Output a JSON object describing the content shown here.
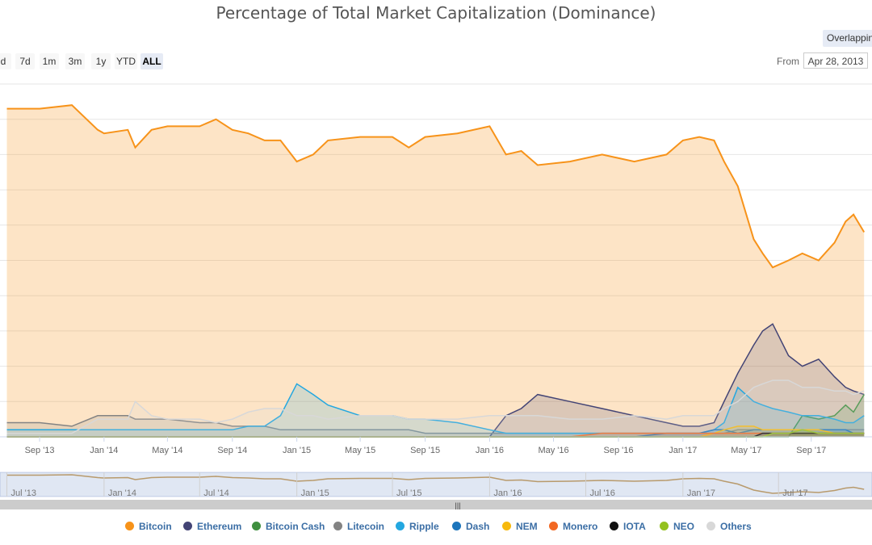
{
  "chart_title": "Percentage of Total Market Capitalization (Dominance)",
  "overlap_button": "Overlapping",
  "zoom_buttons": [
    {
      "label": "d",
      "active": false
    },
    {
      "label": "7d",
      "active": false
    },
    {
      "label": "1m",
      "active": false
    },
    {
      "label": "3m",
      "active": false
    },
    {
      "label": "1y",
      "active": false
    },
    {
      "label": "YTD",
      "active": false
    },
    {
      "label": "ALL",
      "active": true
    }
  ],
  "range": {
    "from_label": "From",
    "from_value": "Apr 28, 2013"
  },
  "navigator_ticks": [
    "Jul '13",
    "Jan '14",
    "Jul '14",
    "Jan '15",
    "Jul '15",
    "Jan '16",
    "Jul '16",
    "Jan '17",
    "Jul '17"
  ],
  "navigator_handle": "|||",
  "chart_data": {
    "type": "area",
    "title": "Percentage of Total Market Capitalization (Dominance)",
    "xlabel": "",
    "ylabel": "",
    "ylim": [
      0,
      100
    ],
    "grid": true,
    "legend_position": "bottom",
    "x_tick_labels": [
      "Sep '13",
      "Jan '14",
      "May '14",
      "Sep '14",
      "Jan '15",
      "May '15",
      "Sep '15",
      "Jan '16",
      "May '16",
      "Sep '16",
      "Jan '17",
      "May '17",
      "Sep '17"
    ],
    "x": [
      "2013-07-01",
      "2013-09-01",
      "2013-11-01",
      "2013-12-20",
      "2014-01-01",
      "2014-02-15",
      "2014-03-01",
      "2014-04-01",
      "2014-05-01",
      "2014-07-01",
      "2014-08-01",
      "2014-09-01",
      "2014-10-01",
      "2014-11-01",
      "2014-12-01",
      "2015-01-01",
      "2015-02-01",
      "2015-03-01",
      "2015-05-01",
      "2015-07-01",
      "2015-08-01",
      "2015-09-01",
      "2015-11-01",
      "2016-01-01",
      "2016-02-01",
      "2016-03-01",
      "2016-04-01",
      "2016-06-01",
      "2016-08-01",
      "2016-10-01",
      "2016-12-01",
      "2017-01-01",
      "2017-02-01",
      "2017-03-01",
      "2017-03-20",
      "2017-04-15",
      "2017-05-15",
      "2017-06-01",
      "2017-06-20",
      "2017-07-20",
      "2017-08-15",
      "2017-09-15",
      "2017-10-15",
      "2017-11-05",
      "2017-11-20",
      "2017-12-10"
    ],
    "series": [
      {
        "name": "Bitcoin",
        "color": "#f7931a",
        "values": [
          93,
          93,
          94,
          87,
          86,
          87,
          82,
          87,
          88,
          88,
          90,
          87,
          86,
          84,
          84,
          78,
          80,
          84,
          85,
          85,
          82,
          85,
          86,
          88,
          80,
          81,
          77,
          78,
          80,
          78,
          80,
          84,
          85,
          84,
          78,
          71,
          56,
          52,
          48,
          50,
          52,
          50,
          55,
          61,
          63,
          58
        ]
      },
      {
        "name": "Ethereum",
        "color": "#434475",
        "values": [
          0,
          0,
          0,
          0,
          0,
          0,
          0,
          0,
          0,
          0,
          0,
          0,
          0,
          0,
          0,
          0,
          0,
          0,
          0,
          0,
          0,
          0,
          0,
          0,
          6,
          8,
          12,
          10,
          8,
          6,
          4,
          3,
          3,
          4,
          10,
          18,
          26,
          30,
          32,
          23,
          20,
          22,
          17,
          14,
          13,
          12
        ]
      },
      {
        "name": "Bitcoin Cash",
        "color": "#3f8f3f",
        "values": [
          0,
          0,
          0,
          0,
          0,
          0,
          0,
          0,
          0,
          0,
          0,
          0,
          0,
          0,
          0,
          0,
          0,
          0,
          0,
          0,
          0,
          0,
          0,
          0,
          0,
          0,
          0,
          0,
          0,
          0,
          0,
          0,
          0,
          0,
          0,
          0,
          0,
          0,
          0,
          0,
          6,
          5,
          6,
          9,
          7,
          12
        ]
      },
      {
        "name": "Litecoin",
        "color": "#838383",
        "values": [
          4,
          4,
          3,
          6,
          6,
          6,
          5,
          5,
          5,
          4,
          4,
          3,
          3,
          3,
          2,
          2,
          2,
          2,
          2,
          2,
          2,
          1,
          1,
          1,
          1,
          1,
          1,
          1,
          1,
          1,
          1,
          1,
          1,
          1,
          1,
          2,
          2,
          2,
          2,
          2,
          2,
          2,
          2,
          2,
          2,
          2
        ]
      },
      {
        "name": "Ripple",
        "color": "#23a7e0",
        "values": [
          2,
          2,
          2,
          2,
          2,
          2,
          2,
          2,
          2,
          2,
          2,
          2,
          3,
          3,
          6,
          15,
          12,
          9,
          6,
          6,
          5,
          5,
          4,
          2,
          1,
          1,
          1,
          1,
          1,
          1,
          1,
          1,
          1,
          2,
          4,
          14,
          10,
          9,
          8,
          7,
          6,
          6,
          5,
          4,
          4,
          6
        ]
      },
      {
        "name": "Dash",
        "color": "#1c75bc",
        "values": [
          0,
          0,
          0,
          0,
          0,
          0,
          0,
          0,
          0,
          0,
          0,
          0,
          0,
          0,
          0,
          0,
          0,
          0,
          0,
          0,
          0,
          0,
          0,
          0,
          0,
          0,
          0,
          0,
          0,
          0,
          1,
          1,
          1,
          2,
          2,
          1,
          2,
          2,
          2,
          2,
          2,
          2,
          2,
          2,
          1,
          1
        ]
      },
      {
        "name": "NEM",
        "color": "#f7b90d",
        "values": [
          0,
          0,
          0,
          0,
          0,
          0,
          0,
          0,
          0,
          0,
          0,
          0,
          0,
          0,
          0,
          0,
          0,
          0,
          0,
          0,
          0,
          0,
          0,
          0,
          0,
          0,
          0,
          0,
          0,
          0,
          0,
          0,
          0,
          1,
          2,
          3,
          3,
          2,
          2,
          2,
          2,
          2,
          1,
          1,
          1,
          1
        ]
      },
      {
        "name": "Monero",
        "color": "#f26822",
        "values": [
          0,
          0,
          0,
          0,
          0,
          0,
          0,
          0,
          0,
          0,
          0,
          0,
          0,
          0,
          0,
          0,
          0,
          0,
          0,
          0,
          0,
          0,
          0,
          0,
          0,
          0,
          0,
          0,
          1,
          1,
          1,
          1,
          1,
          1,
          1,
          1,
          1,
          1,
          1,
          1,
          1,
          1,
          1,
          1,
          1,
          1
        ]
      },
      {
        "name": "IOTA",
        "color": "#111111",
        "values": [
          0,
          0,
          0,
          0,
          0,
          0,
          0,
          0,
          0,
          0,
          0,
          0,
          0,
          0,
          0,
          0,
          0,
          0,
          0,
          0,
          0,
          0,
          0,
          0,
          0,
          0,
          0,
          0,
          0,
          0,
          0,
          0,
          0,
          0,
          0,
          0,
          0,
          1,
          1,
          1,
          1,
          1,
          1,
          1,
          1,
          1
        ]
      },
      {
        "name": "NEO",
        "color": "#94c11f",
        "values": [
          0,
          0,
          0,
          0,
          0,
          0,
          0,
          0,
          0,
          0,
          0,
          0,
          0,
          0,
          0,
          0,
          0,
          0,
          0,
          0,
          0,
          0,
          0,
          0,
          0,
          0,
          0,
          0,
          0,
          0,
          0,
          0,
          0,
          0,
          0,
          0,
          0,
          0,
          1,
          1,
          2,
          1,
          1,
          1,
          1,
          1
        ]
      },
      {
        "name": "Others",
        "color": "#d8d8d8",
        "values": [
          1,
          1,
          1,
          5,
          5,
          5,
          10,
          6,
          5,
          5,
          4,
          5,
          7,
          8,
          8,
          6,
          6,
          5,
          6,
          6,
          5,
          5,
          5,
          6,
          6,
          6,
          6,
          5,
          5,
          6,
          5,
          6,
          6,
          6,
          8,
          10,
          14,
          15,
          16,
          16,
          14,
          14,
          13,
          13,
          12,
          13
        ]
      }
    ]
  }
}
